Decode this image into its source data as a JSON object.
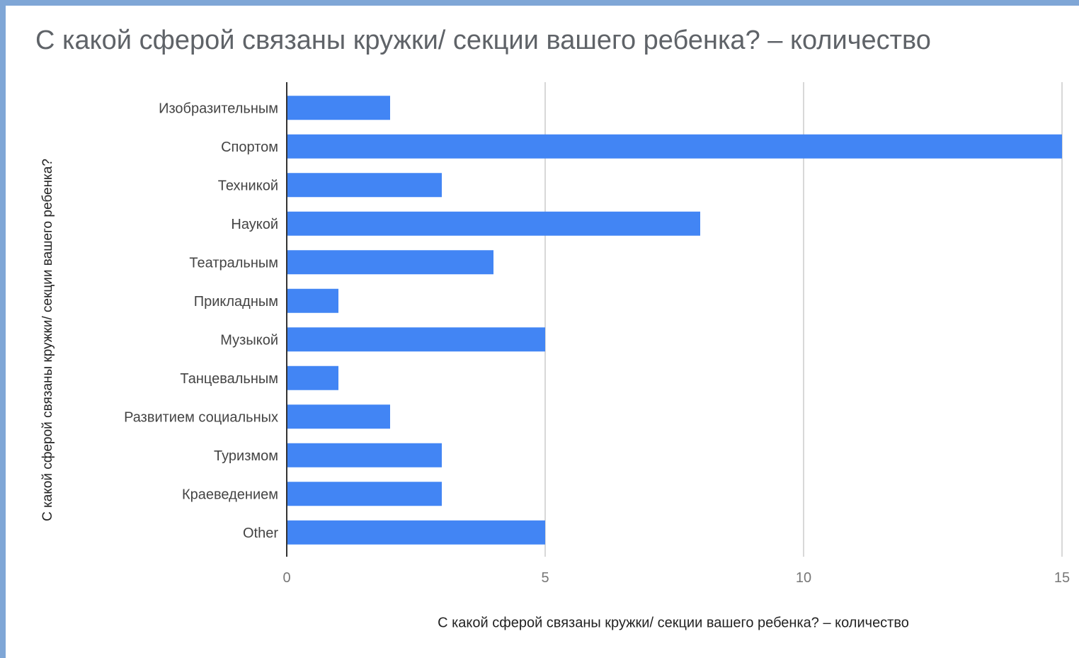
{
  "chart_data": {
    "type": "bar",
    "orientation": "horizontal",
    "title": "С какой сферой связаны кружки/ секции вашего ребенка? – количество",
    "xlabel": "С какой сферой связаны кружки/ секции вашего ребенка? – количество",
    "ylabel": "С какой сферой связаны кружки/ секции вашего ребенка?",
    "categories": [
      "Изобразительным",
      "Спортом",
      "Техникой",
      "Наукой",
      "Театральным",
      "Прикладным",
      "Музыкой",
      "Танцевальным",
      "Развитием социальных",
      "Туризмом",
      "Краеведением",
      "Other"
    ],
    "values": [
      2,
      15,
      3,
      8,
      4,
      1,
      5,
      1,
      2,
      3,
      3,
      5
    ],
    "xlim": [
      0,
      15
    ],
    "xticks": [
      0,
      5,
      10,
      15
    ],
    "grid": true,
    "legend": "none",
    "colors": {
      "bar": "#4285f4",
      "grid": "#cccccc",
      "axis": "#333333"
    }
  }
}
